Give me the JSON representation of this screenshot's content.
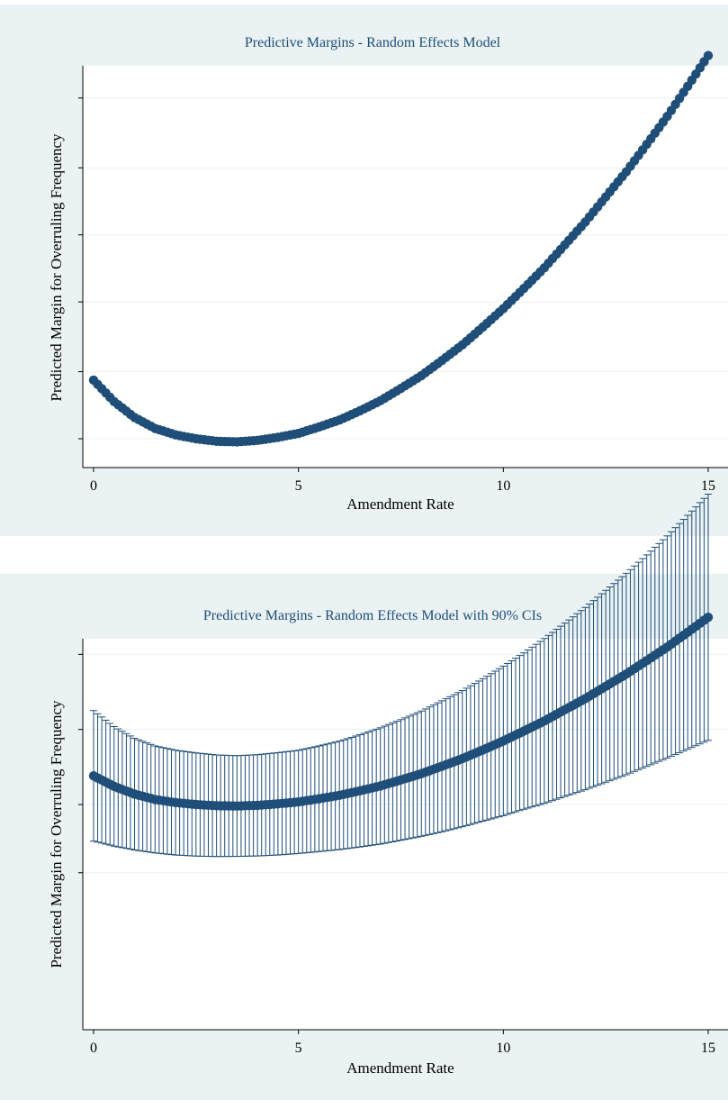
{
  "chart_data": [
    {
      "type": "scatter",
      "title": "Predictive Margins - Random Effects Model",
      "xlabel": "Amendment Rate",
      "ylabel": "Predicted Margin for Overruling Frequency",
      "xlim": [
        0,
        15
      ],
      "xticks": [
        "0",
        "5",
        "10",
        "15"
      ],
      "y_tick_labels_shown": false,
      "grid": true,
      "marker_color": "#1f4e79",
      "series": [
        {
          "x": [
            0,
            0.5,
            1,
            1.5,
            2,
            2.5,
            3,
            3.5,
            4,
            4.5,
            5,
            5.5,
            6,
            6.5,
            7,
            7.5,
            8,
            8.5,
            9,
            9.5,
            10,
            10.5,
            11,
            11.5,
            12,
            12.5,
            13,
            13.5,
            14,
            14.5,
            15
          ],
          "y": [
            0.21,
            0.133,
            0.076,
            0.037,
            0.014,
            0.0,
            -0.009,
            -0.011,
            -0.006,
            0.005,
            0.019,
            0.042,
            0.067,
            0.1,
            0.136,
            0.18,
            0.226,
            0.28,
            0.336,
            0.4,
            0.466,
            0.538,
            0.612,
            0.694,
            0.776,
            0.866,
            0.956,
            1.054,
            1.154,
            1.262,
            1.372
          ]
        }
      ]
    },
    {
      "type": "scatter",
      "title": "Predictive Margins - Random Effects Model with 90% CIs",
      "xlabel": "Amendment Rate",
      "ylabel": "Predicted Margin for Overruling Frequency",
      "xlim": [
        0,
        15
      ],
      "xticks": [
        "0",
        "5",
        "10",
        "15"
      ],
      "y_tick_labels_shown": false,
      "grid": true,
      "marker_color": "#1f4e79",
      "series": [
        {
          "x": [
            0,
            0.5,
            1,
            1.5,
            2,
            2.5,
            3,
            3.5,
            4,
            4.5,
            5,
            5.5,
            6,
            6.5,
            7,
            7.5,
            8,
            8.5,
            9,
            9.5,
            10,
            10.5,
            11,
            11.5,
            12,
            12.5,
            13,
            13.5,
            14,
            14.5,
            15
          ],
          "y": [
            0.21,
            0.133,
            0.076,
            0.037,
            0.014,
            0.0,
            -0.009,
            -0.011,
            -0.006,
            0.005,
            0.019,
            0.042,
            0.067,
            0.1,
            0.136,
            0.18,
            0.226,
            0.28,
            0.336,
            0.4,
            0.466,
            0.538,
            0.612,
            0.694,
            0.776,
            0.866,
            0.956,
            1.054,
            1.154,
            1.262,
            1.372
          ],
          "ci_low": [
            -0.268,
            -0.305,
            -0.333,
            -0.355,
            -0.37,
            -0.378,
            -0.381,
            -0.38,
            -0.377,
            -0.37,
            -0.359,
            -0.345,
            -0.33,
            -0.311,
            -0.29,
            -0.262,
            -0.233,
            -0.2,
            -0.163,
            -0.122,
            -0.082,
            -0.035,
            0.008,
            0.059,
            0.108,
            0.163,
            0.218,
            0.279,
            0.34,
            0.405,
            0.47
          ],
          "ci_high": [
            0.688,
            0.571,
            0.485,
            0.429,
            0.398,
            0.378,
            0.363,
            0.358,
            0.365,
            0.38,
            0.397,
            0.429,
            0.464,
            0.511,
            0.562,
            0.622,
            0.685,
            0.76,
            0.835,
            0.922,
            1.014,
            1.111,
            1.216,
            1.329,
            1.444,
            1.569,
            1.694,
            1.829,
            1.968,
            2.119,
            2.274
          ]
        }
      ]
    }
  ]
}
